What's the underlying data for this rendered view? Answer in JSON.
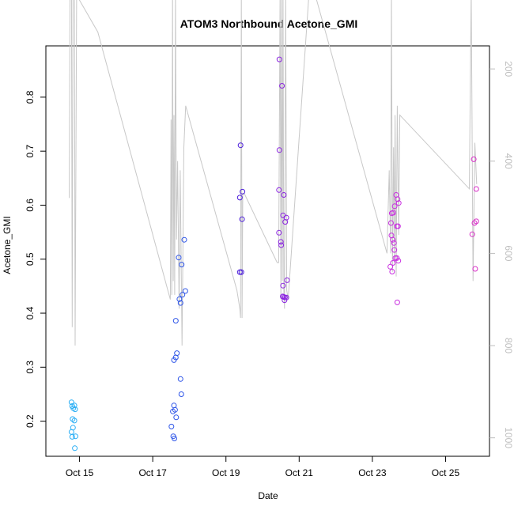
{
  "chart_data": {
    "type": "scatter",
    "title": "ATOM3 Northbound Acetone_GMI",
    "xlabel": "Date",
    "ylabel": "Acetone_GMI",
    "x_ticks": [
      "Oct 15",
      "Oct 17",
      "Oct 19",
      "Oct 21",
      "Oct 23",
      "Oct 25"
    ],
    "x_tick_days": [
      15,
      17,
      19,
      21,
      23,
      25
    ],
    "xlim": [
      14.08,
      26.2
    ],
    "ylim": [
      0.135,
      0.895
    ],
    "y_ticks": [
      0.2,
      0.3,
      0.4,
      0.5,
      0.6,
      0.7,
      0.8
    ],
    "right_axis": {
      "ticks": [
        200,
        400,
        600,
        800,
        1000
      ],
      "range_top": 150,
      "range_bottom": 1040,
      "inverted": true,
      "color": "#bebebe"
    },
    "grid": false,
    "colors": {
      "line": "#c8c8c8",
      "axis": "#000000",
      "right_axis": "#bebebe"
    },
    "points": [
      {
        "x": 14.78,
        "y": 0.235,
        "color": "#29aef5"
      },
      {
        "x": 14.8,
        "y": 0.228,
        "color": "#29aef5"
      },
      {
        "x": 14.83,
        "y": 0.224,
        "color": "#29aef5"
      },
      {
        "x": 14.86,
        "y": 0.229,
        "color": "#29aef5"
      },
      {
        "x": 14.88,
        "y": 0.222,
        "color": "#29aef5"
      },
      {
        "x": 14.81,
        "y": 0.204,
        "color": "#29aef5"
      },
      {
        "x": 14.86,
        "y": 0.201,
        "color": "#29aef5"
      },
      {
        "x": 14.82,
        "y": 0.188,
        "color": "#29aef5"
      },
      {
        "x": 14.78,
        "y": 0.18,
        "color": "#29aef5"
      },
      {
        "x": 14.8,
        "y": 0.171,
        "color": "#29aef5"
      },
      {
        "x": 14.89,
        "y": 0.172,
        "color": "#29aef5"
      },
      {
        "x": 14.87,
        "y": 0.15,
        "color": "#29aef5"
      },
      {
        "x": 17.55,
        "y": 0.218,
        "color": "#2f56e8"
      },
      {
        "x": 17.58,
        "y": 0.229,
        "color": "#2f56e8"
      },
      {
        "x": 17.61,
        "y": 0.221,
        "color": "#2f56e8"
      },
      {
        "x": 17.64,
        "y": 0.207,
        "color": "#2f56e8"
      },
      {
        "x": 17.51,
        "y": 0.19,
        "color": "#2f56e8"
      },
      {
        "x": 17.56,
        "y": 0.172,
        "color": "#2f56e8"
      },
      {
        "x": 17.59,
        "y": 0.168,
        "color": "#2f56e8"
      },
      {
        "x": 17.78,
        "y": 0.25,
        "color": "#2f56e8"
      },
      {
        "x": 17.76,
        "y": 0.278,
        "color": "#2f56e8"
      },
      {
        "x": 17.58,
        "y": 0.313,
        "color": "#2f56e8"
      },
      {
        "x": 17.63,
        "y": 0.318,
        "color": "#2f56e8"
      },
      {
        "x": 17.66,
        "y": 0.326,
        "color": "#2f56e8"
      },
      {
        "x": 17.63,
        "y": 0.386,
        "color": "#2f56e8"
      },
      {
        "x": 17.76,
        "y": 0.419,
        "color": "#2f56e8"
      },
      {
        "x": 17.73,
        "y": 0.426,
        "color": "#2f56e8"
      },
      {
        "x": 17.81,
        "y": 0.434,
        "color": "#2f56e8"
      },
      {
        "x": 17.89,
        "y": 0.441,
        "color": "#2f56e8"
      },
      {
        "x": 17.79,
        "y": 0.49,
        "color": "#2f56e8"
      },
      {
        "x": 17.71,
        "y": 0.503,
        "color": "#2f56e8"
      },
      {
        "x": 17.86,
        "y": 0.536,
        "color": "#2f56e8"
      },
      {
        "x": 19.4,
        "y": 0.711,
        "color": "#4a1bdb"
      },
      {
        "x": 19.45,
        "y": 0.625,
        "color": "#4a1bdb"
      },
      {
        "x": 19.38,
        "y": 0.614,
        "color": "#4a1bdb"
      },
      {
        "x": 19.44,
        "y": 0.574,
        "color": "#4a1bdb"
      },
      {
        "x": 19.38,
        "y": 0.476,
        "color": "#4a1bdb"
      },
      {
        "x": 19.42,
        "y": 0.476,
        "color": "#4a1bdb"
      },
      {
        "x": 20.46,
        "y": 0.87,
        "color": "#8b24e0"
      },
      {
        "x": 20.53,
        "y": 0.821,
        "color": "#8b24e0"
      },
      {
        "x": 20.46,
        "y": 0.702,
        "color": "#8b24e0"
      },
      {
        "x": 20.45,
        "y": 0.628,
        "color": "#8b24e0"
      },
      {
        "x": 20.58,
        "y": 0.619,
        "color": "#8b24e0"
      },
      {
        "x": 20.56,
        "y": 0.581,
        "color": "#8b24e0"
      },
      {
        "x": 20.65,
        "y": 0.577,
        "color": "#8b24e0"
      },
      {
        "x": 20.62,
        "y": 0.569,
        "color": "#8b24e0"
      },
      {
        "x": 20.45,
        "y": 0.549,
        "color": "#8b24e0"
      },
      {
        "x": 20.5,
        "y": 0.532,
        "color": "#8b24e0"
      },
      {
        "x": 20.51,
        "y": 0.526,
        "color": "#8b24e0"
      },
      {
        "x": 20.67,
        "y": 0.461,
        "color": "#8b24e0"
      },
      {
        "x": 20.56,
        "y": 0.451,
        "color": "#8b24e0"
      },
      {
        "x": 20.55,
        "y": 0.431,
        "color": "#8b24e0"
      },
      {
        "x": 20.58,
        "y": 0.43,
        "color": "#8b24e0"
      },
      {
        "x": 20.61,
        "y": 0.429,
        "color": "#8b24e0"
      },
      {
        "x": 20.65,
        "y": 0.429,
        "color": "#8b24e0"
      },
      {
        "x": 20.6,
        "y": 0.424,
        "color": "#8b24e0"
      },
      {
        "x": 23.51,
        "y": 0.567,
        "color": "#c92ee0"
      },
      {
        "x": 23.53,
        "y": 0.585,
        "color": "#c92ee0"
      },
      {
        "x": 23.57,
        "y": 0.586,
        "color": "#c92ee0"
      },
      {
        "x": 23.61,
        "y": 0.598,
        "color": "#c92ee0"
      },
      {
        "x": 23.65,
        "y": 0.619,
        "color": "#c92ee0"
      },
      {
        "x": 23.69,
        "y": 0.611,
        "color": "#c92ee0"
      },
      {
        "x": 23.72,
        "y": 0.604,
        "color": "#c92ee0"
      },
      {
        "x": 23.67,
        "y": 0.561,
        "color": "#c92ee0"
      },
      {
        "x": 23.7,
        "y": 0.561,
        "color": "#c92ee0"
      },
      {
        "x": 23.52,
        "y": 0.544,
        "color": "#c92ee0"
      },
      {
        "x": 23.56,
        "y": 0.536,
        "color": "#c92ee0"
      },
      {
        "x": 23.59,
        "y": 0.53,
        "color": "#c92ee0"
      },
      {
        "x": 23.6,
        "y": 0.517,
        "color": "#c92ee0"
      },
      {
        "x": 23.63,
        "y": 0.502,
        "color": "#c92ee0"
      },
      {
        "x": 23.67,
        "y": 0.502,
        "color": "#c92ee0"
      },
      {
        "x": 23.71,
        "y": 0.497,
        "color": "#c92ee0"
      },
      {
        "x": 23.56,
        "y": 0.493,
        "color": "#c92ee0"
      },
      {
        "x": 23.49,
        "y": 0.486,
        "color": "#c92ee0"
      },
      {
        "x": 23.54,
        "y": 0.477,
        "color": "#c92ee0"
      },
      {
        "x": 23.68,
        "y": 0.42,
        "color": "#c92ee0"
      },
      {
        "x": 25.77,
        "y": 0.685,
        "color": "#d92fc8"
      },
      {
        "x": 25.84,
        "y": 0.63,
        "color": "#d92fc8"
      },
      {
        "x": 25.79,
        "y": 0.567,
        "color": "#d92fc8"
      },
      {
        "x": 25.84,
        "y": 0.57,
        "color": "#d92fc8"
      },
      {
        "x": 25.73,
        "y": 0.546,
        "color": "#d92fc8"
      },
      {
        "x": 25.81,
        "y": 0.482,
        "color": "#d92fc8"
      }
    ],
    "altitude_line": {
      "x": [
        14.72,
        14.74,
        14.78,
        14.8,
        14.82,
        14.86,
        14.88,
        14.92,
        15.5,
        17.48,
        17.5,
        17.52,
        17.54,
        17.56,
        17.58,
        17.6,
        17.62,
        17.65,
        17.68,
        17.72,
        17.75,
        17.8,
        17.85,
        17.9,
        19.3,
        19.38,
        19.4,
        19.42,
        19.44,
        19.46,
        19.5,
        20.4,
        20.44,
        20.48,
        20.5,
        20.52,
        20.54,
        20.56,
        20.58,
        20.6,
        20.63,
        20.66,
        20.7,
        21.3,
        23.4,
        23.46,
        23.5,
        23.52,
        23.55,
        23.58,
        23.6,
        23.62,
        23.65,
        23.68,
        23.72,
        23.75,
        25.65,
        25.7,
        25.75,
        25.8,
        25.85
      ],
      "y": [
        480,
        40,
        40,
        760,
        40,
        40,
        800,
        40,
        120,
        700,
        310,
        690,
        30,
        660,
        300,
        690,
        30,
        570,
        400,
        720,
        420,
        800,
        370,
        280,
        680,
        720,
        740,
        30,
        740,
        470,
        470,
        620,
        620,
        30,
        700,
        30,
        660,
        30,
        680,
        720,
        30,
        680,
        700,
        0,
        600,
        420,
        600,
        30,
        640,
        370,
        620,
        300,
        650,
        280,
        560,
        300,
        460,
        30,
        660,
        360,
        450
      ]
    }
  }
}
